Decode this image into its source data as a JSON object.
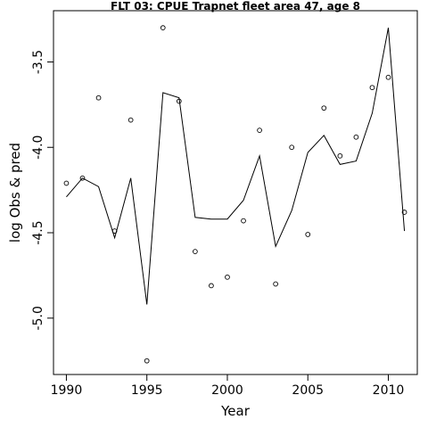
{
  "chart_data": {
    "type": "scatter",
    "title": "FLT 03: CPUE Trapnet fleet area 47, age 8",
    "xlabel": "Year",
    "ylabel": "log Obs & pred",
    "xlim": [
      1989.2,
      2011.8
    ],
    "ylim": [
      -5.33,
      -3.2
    ],
    "x_ticks": [
      1990,
      1995,
      2000,
      2005,
      2010
    ],
    "y_ticks": [
      -5.0,
      -4.5,
      -4.0,
      -3.5
    ],
    "x_tick_labels": [
      "1990",
      "1995",
      "2000",
      "2005",
      "2010"
    ],
    "y_tick_labels": [
      "-5.0",
      "-4.5",
      "-4.0",
      "-3.5"
    ],
    "grid": false,
    "legend": "none",
    "series": [
      {
        "kind": "points",
        "marker": "open-circle",
        "x": [
          1990,
          1991,
          1992,
          1993,
          1994,
          1995,
          1996,
          1997,
          1998,
          1999,
          2000,
          2001,
          2002,
          2003,
          2004,
          2005,
          2006,
          2007,
          2008,
          2009,
          2010,
          2011
        ],
        "y": [
          -4.21,
          -4.18,
          -3.71,
          -4.49,
          -3.84,
          -5.25,
          -3.3,
          -3.73,
          -4.61,
          -4.81,
          -4.76,
          -4.43,
          -3.9,
          -4.8,
          -4.0,
          -4.51,
          -3.77,
          -4.05,
          -3.94,
          -3.65,
          -3.59,
          -4.38
        ]
      },
      {
        "kind": "line",
        "x": [
          1990,
          1991,
          1992,
          1993,
          1994,
          1995,
          1996,
          1997,
          1998,
          1999,
          2000,
          2001,
          2002,
          2003,
          2004,
          2005,
          2006,
          2007,
          2008,
          2009,
          2010,
          2011
        ],
        "y": [
          -4.29,
          -4.18,
          -4.23,
          -4.53,
          -4.18,
          -4.92,
          -3.68,
          -3.71,
          -4.41,
          -4.42,
          -4.42,
          -4.31,
          -4.05,
          -4.58,
          -4.37,
          -4.03,
          -3.93,
          -4.1,
          -4.08,
          -3.8,
          -3.3,
          -4.49
        ]
      }
    ]
  }
}
